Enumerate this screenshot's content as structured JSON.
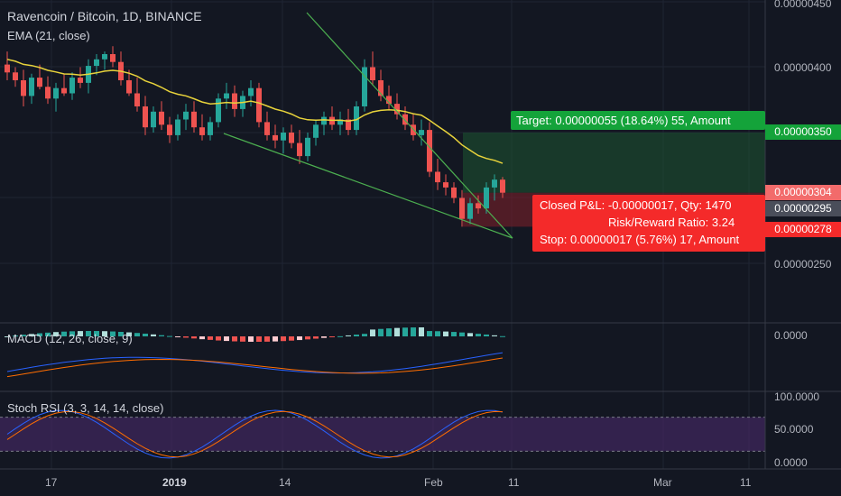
{
  "title": "Ravencoin / Bitcoin, 1D, BINANCE",
  "indicators": {
    "ema": "EMA (21, close)",
    "macd": "MACD (12, 26, close, 9)",
    "stoch": "Stoch RSI (3, 3, 14, 14, close)"
  },
  "price_axis": {
    "ticks": [
      "0.00000450",
      "0.00000400",
      "0.00000350",
      "0.00000250"
    ],
    "target_badge": "0.00000350",
    "entry_badge": "0.00000304",
    "current_badge": "0.00000295",
    "stop_badge": "0.00000278"
  },
  "macd_axis": {
    "ticks": [
      "0.0000"
    ]
  },
  "stoch_axis": {
    "ticks": [
      "100.0000",
      "50.0000",
      "0.0000"
    ]
  },
  "time_axis": {
    "ticks": [
      "17",
      "2019",
      "14",
      "Feb",
      "11",
      "Mar",
      "11"
    ]
  },
  "position": {
    "target": "Target: 0.00000055 (18.64%) 55, Amount",
    "closed_pl": "Closed P&L: -0.00000017, Qty: 1470",
    "risk_reward": "Risk/Reward Ratio: 3.24",
    "stop": "Stop: 0.00000017 (5.76%) 17, Amount"
  },
  "colors": {
    "background": "#131722",
    "up": "#26a69a",
    "down": "#ef5350",
    "ema": "#e8d33b",
    "trendline": "#4caf50",
    "target_zone": "#1e5631",
    "stop_zone": "#7a1f2a",
    "stoch_band": "#4a2a6a"
  },
  "chart_data": {
    "type": "candlestick",
    "symbol": "Ravencoin / Bitcoin",
    "timeframe": "1D",
    "candles": [
      [
        402,
        412,
        390,
        396
      ],
      [
        396,
        400,
        385,
        390
      ],
      [
        390,
        398,
        370,
        378
      ],
      [
        378,
        395,
        372,
        392
      ],
      [
        392,
        402,
        383,
        385
      ],
      [
        385,
        393,
        372,
        376
      ],
      [
        376,
        388,
        366,
        384
      ],
      [
        384,
        395,
        378,
        380
      ],
      [
        380,
        396,
        375,
        392
      ],
      [
        392,
        400,
        384,
        388
      ],
      [
        388,
        406,
        380,
        401
      ],
      [
        401,
        410,
        394,
        406
      ],
      [
        406,
        412,
        398,
        410
      ],
      [
        410,
        416,
        400,
        404
      ],
      [
        404,
        412,
        386,
        390
      ],
      [
        390,
        398,
        378,
        380
      ],
      [
        380,
        392,
        366,
        370
      ],
      [
        370,
        378,
        348,
        354
      ],
      [
        354,
        370,
        350,
        366
      ],
      [
        366,
        374,
        352,
        356
      ],
      [
        356,
        362,
        342,
        348
      ],
      [
        348,
        364,
        344,
        360
      ],
      [
        360,
        372,
        352,
        366
      ],
      [
        366,
        374,
        350,
        354
      ],
      [
        354,
        364,
        344,
        348
      ],
      [
        348,
        362,
        344,
        358
      ],
      [
        358,
        380,
        354,
        376
      ],
      [
        376,
        388,
        368,
        380
      ],
      [
        380,
        386,
        362,
        368
      ],
      [
        368,
        382,
        362,
        378
      ],
      [
        378,
        390,
        370,
        384
      ],
      [
        384,
        388,
        354,
        358
      ],
      [
        358,
        366,
        344,
        348
      ],
      [
        348,
        356,
        338,
        344
      ],
      [
        344,
        354,
        334,
        350
      ],
      [
        350,
        356,
        338,
        342
      ],
      [
        342,
        352,
        326,
        332
      ],
      [
        332,
        350,
        328,
        346
      ],
      [
        346,
        360,
        340,
        356
      ],
      [
        356,
        366,
        348,
        362
      ],
      [
        362,
        370,
        352,
        356
      ],
      [
        356,
        366,
        348,
        360
      ],
      [
        360,
        368,
        348,
        352
      ],
      [
        352,
        374,
        348,
        370
      ],
      [
        370,
        406,
        366,
        400
      ],
      [
        400,
        412,
        386,
        390
      ],
      [
        390,
        398,
        374,
        378
      ],
      [
        378,
        386,
        368,
        372
      ],
      [
        372,
        380,
        360,
        364
      ],
      [
        364,
        370,
        352,
        356
      ],
      [
        356,
        364,
        344,
        348
      ],
      [
        348,
        360,
        340,
        352
      ],
      [
        352,
        358,
        316,
        320
      ],
      [
        320,
        330,
        306,
        312
      ],
      [
        312,
        318,
        302,
        308
      ],
      [
        308,
        312,
        296,
        300
      ],
      [
        300,
        306,
        278,
        284
      ],
      [
        284,
        300,
        280,
        296
      ],
      [
        296,
        302,
        288,
        292
      ],
      [
        292,
        312,
        288,
        308
      ],
      [
        308,
        318,
        298,
        314
      ],
      [
        314,
        316,
        300,
        304
      ]
    ],
    "indicators": [
      "EMA (21, close)",
      "MACD (12, 26, close, 9)",
      "Stoch RSI (3, 3, 14, 14, close)"
    ],
    "target_price": 3.5e-06,
    "entry_price": 3.04e-06,
    "current_price": 2.95e-06,
    "stop_price": 2.78e-06,
    "risk_reward": 3.24
  }
}
